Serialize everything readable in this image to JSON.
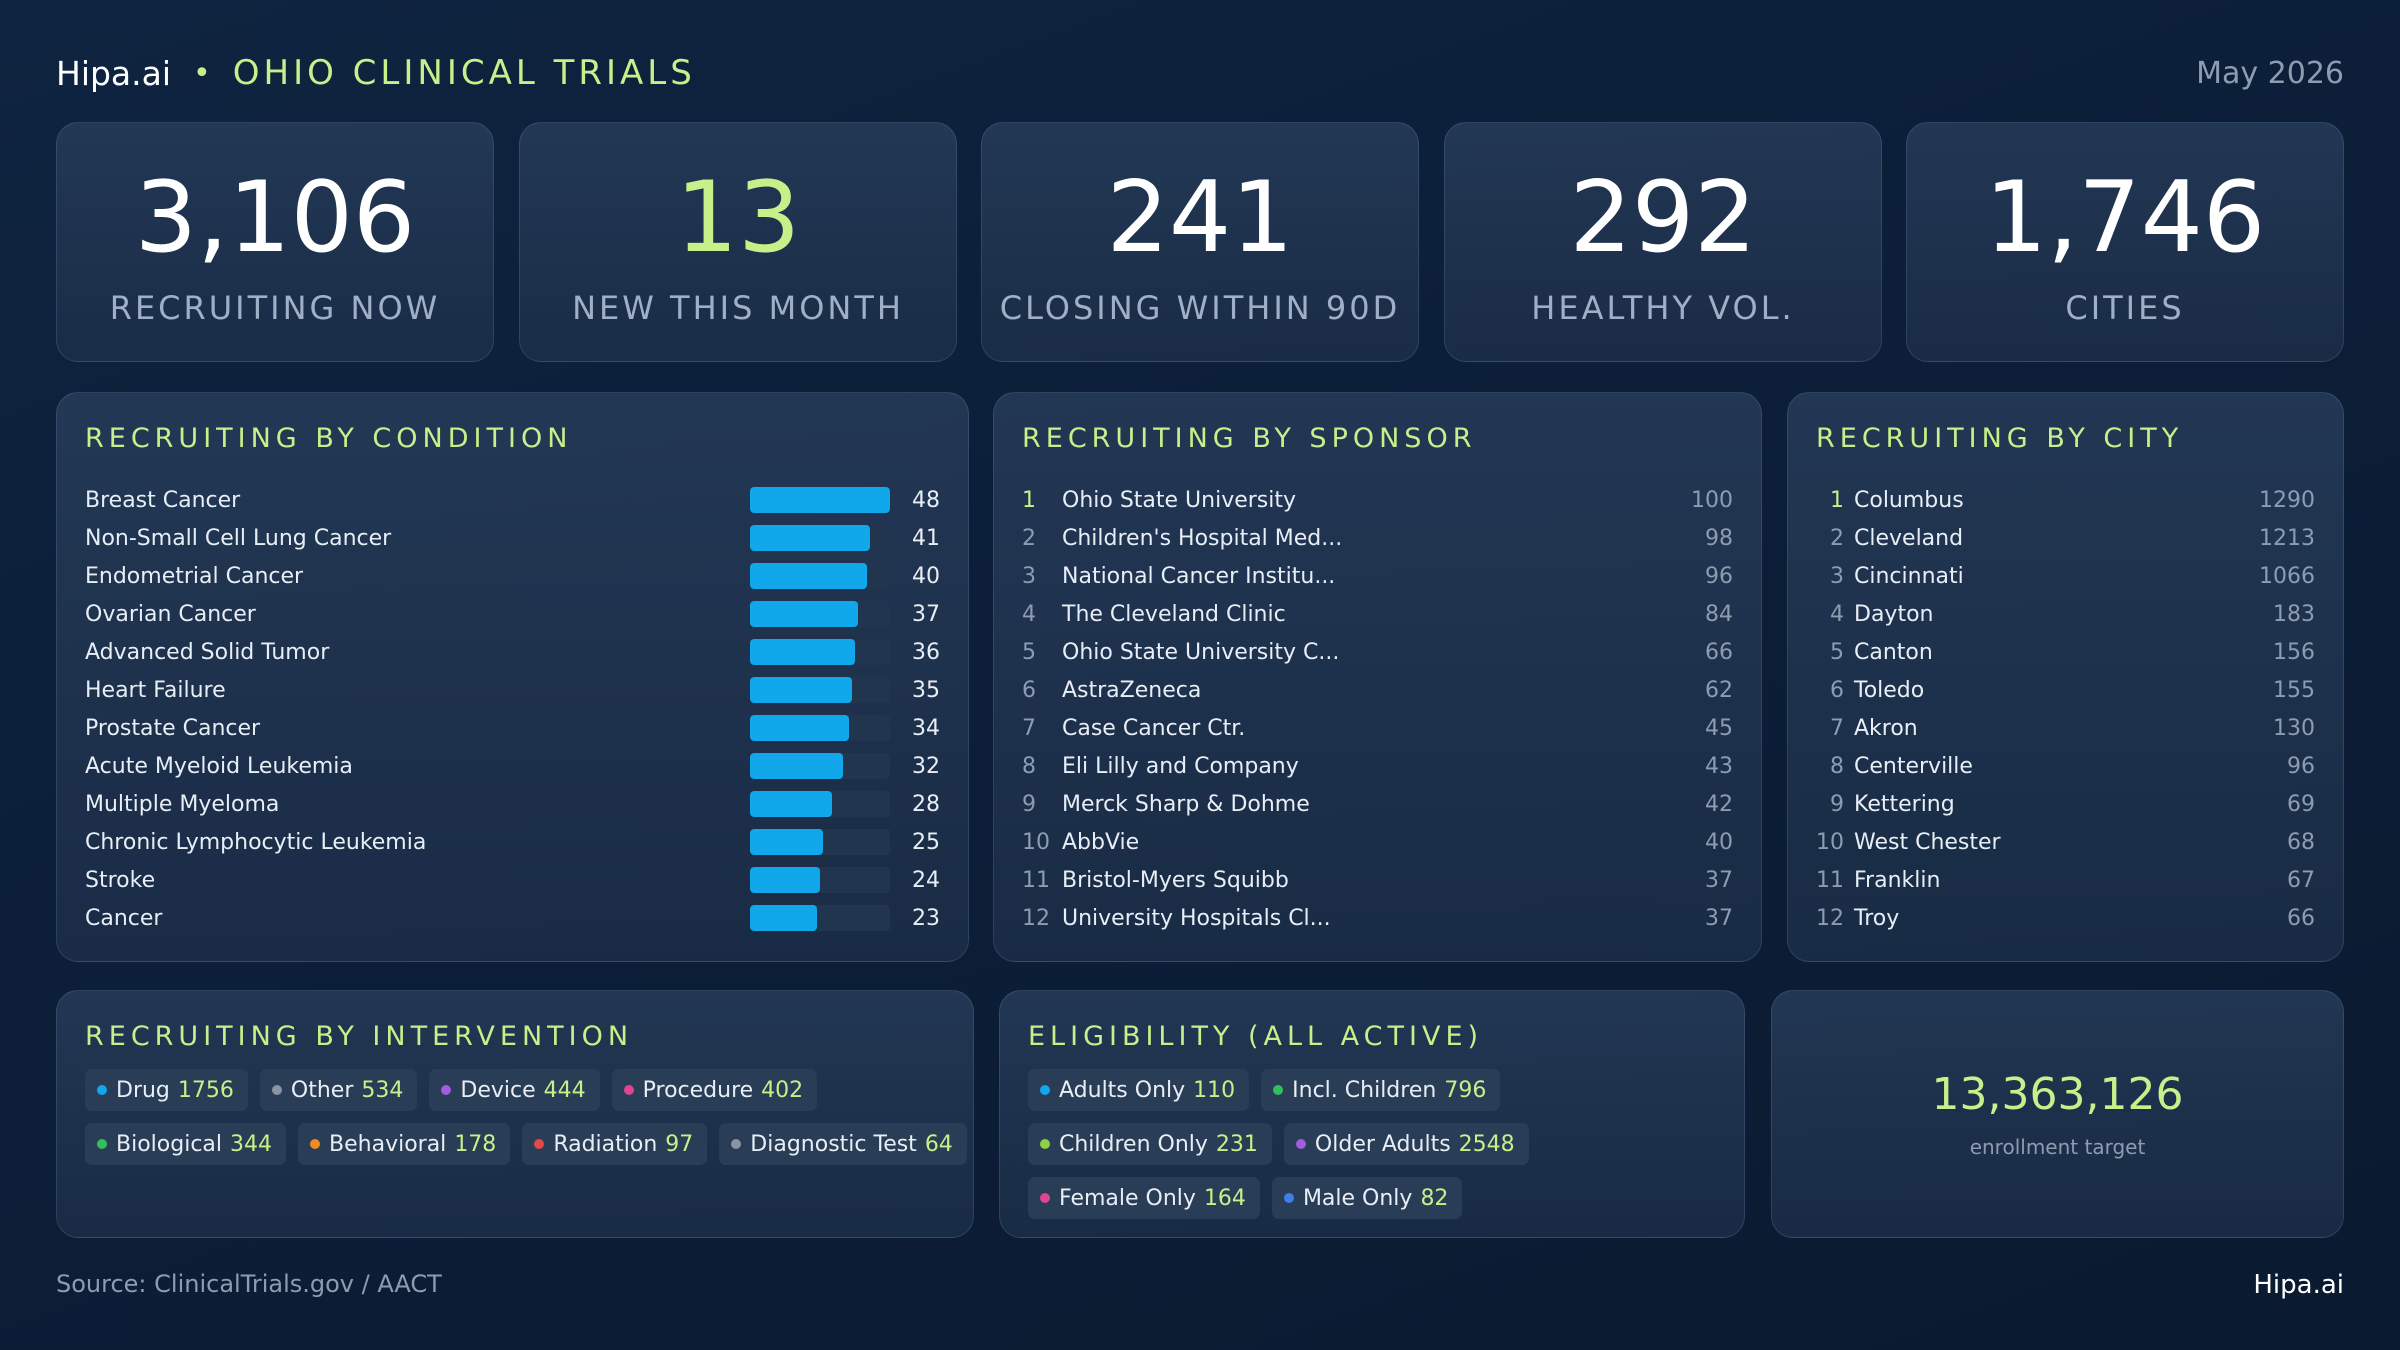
{
  "header": {
    "brand": "Hipa.ai",
    "separator": "•",
    "title": "OHIO CLINICAL TRIALS",
    "date": "May 2026"
  },
  "kpis": [
    {
      "value": "3,106",
      "label": "RECRUITING NOW",
      "accent": false
    },
    {
      "value": "13",
      "label": "NEW THIS MONTH",
      "accent": true
    },
    {
      "value": "241",
      "label": "CLOSING WITHIN 90D",
      "accent": false
    },
    {
      "value": "292",
      "label": "HEALTHY VOL.",
      "accent": false
    },
    {
      "value": "1,746",
      "label": "CITIES",
      "accent": false
    }
  ],
  "by_condition": {
    "title": "RECRUITING BY CONDITION",
    "max": 48,
    "items": [
      {
        "name": "Breast Cancer",
        "count": 48
      },
      {
        "name": "Non-Small Cell Lung Cancer",
        "count": 41
      },
      {
        "name": "Endometrial Cancer",
        "count": 40
      },
      {
        "name": "Ovarian Cancer",
        "count": 37
      },
      {
        "name": "Advanced Solid Tumor",
        "count": 36
      },
      {
        "name": "Heart Failure",
        "count": 35
      },
      {
        "name": "Prostate Cancer",
        "count": 34
      },
      {
        "name": "Acute Myeloid Leukemia",
        "count": 32
      },
      {
        "name": "Multiple Myeloma",
        "count": 28
      },
      {
        "name": "Chronic Lymphocytic Leukemia",
        "count": 25
      },
      {
        "name": "Stroke",
        "count": 24
      },
      {
        "name": "Cancer",
        "count": 23
      }
    ]
  },
  "by_sponsor": {
    "title": "RECRUITING BY SPONSOR",
    "items": [
      {
        "rank": "1",
        "name": "Ohio State University",
        "count": "100"
      },
      {
        "rank": "2",
        "name": "Children's Hospital Med...",
        "count": "98"
      },
      {
        "rank": "3",
        "name": "National Cancer Institu...",
        "count": "96"
      },
      {
        "rank": "4",
        "name": "The Cleveland Clinic",
        "count": "84"
      },
      {
        "rank": "5",
        "name": "Ohio State University C...",
        "count": "66"
      },
      {
        "rank": "6",
        "name": "AstraZeneca",
        "count": "62"
      },
      {
        "rank": "7",
        "name": "Case Cancer Ctr.",
        "count": "45"
      },
      {
        "rank": "8",
        "name": "Eli Lilly and Company",
        "count": "43"
      },
      {
        "rank": "9",
        "name": "Merck Sharp & Dohme",
        "count": "42"
      },
      {
        "rank": "10",
        "name": "AbbVie",
        "count": "40"
      },
      {
        "rank": "11",
        "name": "Bristol-Myers Squibb",
        "count": "37"
      },
      {
        "rank": "12",
        "name": "University Hospitals Cl...",
        "count": "37"
      }
    ]
  },
  "by_city": {
    "title": "RECRUITING BY CITY",
    "items": [
      {
        "rank": "1",
        "name": "Columbus",
        "count": "1290"
      },
      {
        "rank": "2",
        "name": "Cleveland",
        "count": "1213"
      },
      {
        "rank": "3",
        "name": "Cincinnati",
        "count": "1066"
      },
      {
        "rank": "4",
        "name": "Dayton",
        "count": "183"
      },
      {
        "rank": "5",
        "name": "Canton",
        "count": "156"
      },
      {
        "rank": "6",
        "name": "Toledo",
        "count": "155"
      },
      {
        "rank": "7",
        "name": "Akron",
        "count": "130"
      },
      {
        "rank": "8",
        "name": "Centerville",
        "count": "96"
      },
      {
        "rank": "9",
        "name": "Kettering",
        "count": "69"
      },
      {
        "rank": "10",
        "name": "West Chester",
        "count": "68"
      },
      {
        "rank": "11",
        "name": "Franklin",
        "count": "67"
      },
      {
        "rank": "12",
        "name": "Troy",
        "count": "66"
      }
    ]
  },
  "by_intervention": {
    "title": "RECRUITING BY INTERVENTION",
    "rows": [
      [
        {
          "label": "Drug",
          "count": "1756",
          "color": "#10a8ea"
        },
        {
          "label": "Other",
          "count": "534",
          "color": "#8a94a3"
        },
        {
          "label": "Device",
          "count": "444",
          "color": "#a35be0"
        },
        {
          "label": "Procedure",
          "count": "402",
          "color": "#e0458f"
        }
      ],
      [
        {
          "label": "Biological",
          "count": "344",
          "color": "#2fc25b"
        },
        {
          "label": "Behavioral",
          "count": "178",
          "color": "#f08a24"
        },
        {
          "label": "Radiation",
          "count": "97",
          "color": "#e54848"
        },
        {
          "label": "Diagnostic Test",
          "count": "64",
          "color": "#8a94a3"
        }
      ]
    ]
  },
  "eligibility": {
    "title": "ELIGIBILITY (ALL ACTIVE)",
    "rows": [
      [
        {
          "label": "Adults Only",
          "count": "110",
          "color": "#10a8ea"
        },
        {
          "label": "Incl. Children",
          "count": "796",
          "color": "#2fc25b"
        }
      ],
      [
        {
          "label": "Children Only",
          "count": "231",
          "color": "#8fd142"
        },
        {
          "label": "Older Adults",
          "count": "2548",
          "color": "#a35be0"
        }
      ],
      [
        {
          "label": "Female Only",
          "count": "164",
          "color": "#e0458f"
        },
        {
          "label": "Male Only",
          "count": "82",
          "color": "#3d7fe8"
        }
      ]
    ]
  },
  "enrollment": {
    "value": "13,363,126",
    "label": "enrollment target"
  },
  "footer": {
    "source": "Source: ClinicalTrials.gov / AACT",
    "brand": "Hipa.ai"
  }
}
